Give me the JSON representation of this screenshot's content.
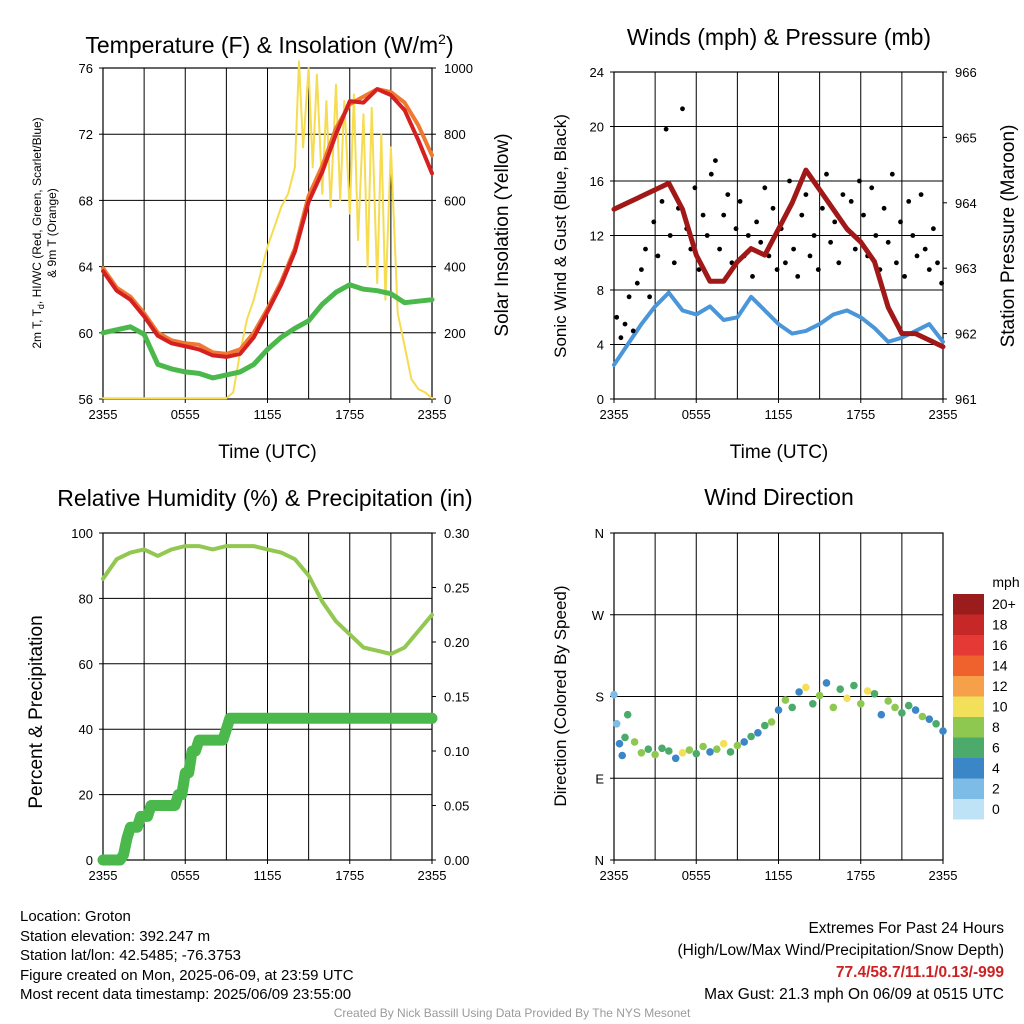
{
  "info": {
    "location": "Location: Groton",
    "elevation": "Station elevation: 392.247 m",
    "latlon": "Station lat/lon: 42.5485; -76.3753",
    "created": "Figure created on Mon, 2025-06-09, at 23:59 UTC",
    "recent": "Most recent data timestamp: 2025/06/09 23:55:00"
  },
  "extremes": {
    "title": "Extremes For Past 24 Hours",
    "subtitle": "(High/Low/Max Wind/Precipitation/Snow Depth)",
    "values": "77.4/58.7/11.1/0.13/-999",
    "max_gust": "Max Gust: 21.3 mph On 06/09 at 0515 UTC"
  },
  "credit": "Created By Nick Bassill Using Data Provided By The NYS Mesonet",
  "colors": {
    "temp": "#d42020",
    "dew": "#4ab84a",
    "heat_index": "#f07830",
    "solar": "#f5dc50",
    "wind": "#4a96d8",
    "gust": "#000000",
    "pressure": "#a01818",
    "rh": "#92c850",
    "precip": "#4ab84a"
  },
  "chart_data": [
    {
      "id": "temperature",
      "type": "line",
      "title": "Temperature (F) & Insolation (W/m",
      "title_sup": "2",
      "title_end": ")",
      "xlabel": "Time (UTC)",
      "ylabel_lines": [
        "2m T, T",
        "d",
        ", HI/WC (Red, Green, Scarlet/Blue)",
        "& 9m T (Orange)"
      ],
      "ylabel_right": "Solar Insolation (Yellow)",
      "x_ticks": [
        "2355",
        "0555",
        "1155",
        "1755",
        "2355"
      ],
      "ylim": [
        56,
        78
      ],
      "y_ticks": [
        "56",
        "60",
        "64",
        "68",
        "72",
        "76"
      ],
      "y2lim": [
        0,
        1000
      ],
      "y2_ticks": [
        "0",
        "200",
        "400",
        "600",
        "800",
        "1000"
      ],
      "x_hours": [
        0,
        1,
        2,
        3,
        4,
        5,
        6,
        7,
        8,
        9,
        10,
        11,
        12,
        13,
        14,
        15,
        16,
        17,
        18,
        19,
        20,
        21,
        22,
        23,
        24
      ],
      "series": [
        {
          "key": "dew",
          "values": [
            60.4,
            60.6,
            60.8,
            60.3,
            58.3,
            58.0,
            57.8,
            57.7,
            57.4,
            57.6,
            57.8,
            58.3,
            59.3,
            60.1,
            60.7,
            61.2,
            62.3,
            63.1,
            63.6,
            63.3,
            63.2,
            63.0,
            62.4,
            62.5,
            62.6
          ]
        },
        {
          "key": "heat_index",
          "values": [
            64.7,
            63.4,
            62.8,
            61.7,
            60.4,
            59.9,
            59.7,
            59.6,
            59.1,
            59.0,
            59.3,
            60.4,
            62.0,
            63.8,
            66.0,
            69.5,
            71.5,
            74.0,
            75.6,
            76.1,
            76.6,
            76.4,
            75.7,
            74.2,
            72.2
          ]
        },
        {
          "key": "temp",
          "values": [
            64.5,
            63.2,
            62.6,
            61.5,
            60.2,
            59.7,
            59.5,
            59.3,
            58.9,
            58.8,
            59.0,
            60.1,
            61.8,
            63.6,
            65.8,
            69.1,
            71.1,
            73.6,
            75.8,
            75.7,
            76.6,
            76.2,
            75.2,
            73.2,
            71.0
          ]
        }
      ],
      "solar": {
        "key": "solar",
        "x_hours": [
          0,
          4,
          8,
          9,
          9.5,
          10,
          10.5,
          11,
          11.5,
          12,
          12.5,
          13,
          13.5,
          14,
          14.3,
          14.6,
          15,
          15.3,
          15.6,
          16,
          16.3,
          16.6,
          17,
          17.3,
          17.6,
          18,
          18.3,
          18.6,
          19,
          19.3,
          19.6,
          20,
          20.3,
          20.6,
          21,
          21.5,
          22,
          22.5,
          23,
          23.5,
          24
        ],
        "values": [
          2,
          2,
          2,
          2,
          20,
          140,
          240,
          300,
          380,
          460,
          520,
          580,
          620,
          700,
          1020,
          760,
          1000,
          700,
          980,
          620,
          900,
          580,
          950,
          600,
          900,
          560,
          920,
          480,
          860,
          400,
          880,
          350,
          800,
          300,
          760,
          260,
          160,
          60,
          30,
          20,
          2
        ]
      }
    },
    {
      "id": "winds",
      "type": "line",
      "title": "Winds (mph) & Pressure (mb)",
      "xlabel": "Time (UTC)",
      "ylabel": "Sonic Wind & Gust (Blue, Black)",
      "ylabel_right": "Station Pressure (Maroon)",
      "x_ticks": [
        "2355",
        "0555",
        "1155",
        "1755",
        "2355"
      ],
      "ylim": [
        0,
        24
      ],
      "y_ticks": [
        "0",
        "4",
        "8",
        "12",
        "16",
        "20",
        "24"
      ],
      "y2lim": [
        961,
        966
      ],
      "y2_ticks": [
        "961",
        "962",
        "963",
        "964",
        "965",
        "966"
      ],
      "x_hours": [
        0,
        1,
        2,
        3,
        4,
        5,
        6,
        7,
        8,
        9,
        10,
        11,
        12,
        13,
        14,
        15,
        16,
        17,
        18,
        19,
        20,
        21,
        22,
        23,
        24
      ],
      "series": [
        {
          "key": "wind",
          "values": [
            2.5,
            4.0,
            5.5,
            6.8,
            7.8,
            6.5,
            6.2,
            6.8,
            5.8,
            6.0,
            7.5,
            6.5,
            5.5,
            4.8,
            5.0,
            5.5,
            6.2,
            6.5,
            6.0,
            5.2,
            4.2,
            4.5,
            5.0,
            5.5,
            4.2
          ]
        },
        {
          "key": "pressure",
          "values": [
            963.9,
            964.0,
            964.1,
            964.2,
            964.3,
            963.9,
            963.2,
            962.8,
            962.8,
            963.1,
            963.3,
            963.2,
            963.6,
            964.0,
            964.5,
            964.2,
            963.9,
            963.6,
            963.4,
            963.1,
            962.4,
            962.0,
            962.0,
            961.9,
            961.8
          ]
        }
      ],
      "gusts": {
        "key": "gust",
        "x_hours": [
          0.2,
          0.5,
          0.8,
          1.1,
          1.4,
          1.7,
          2.0,
          2.3,
          2.6,
          2.9,
          3.2,
          3.5,
          3.8,
          4.1,
          4.4,
          4.7,
          5.0,
          5.3,
          5.6,
          5.9,
          6.2,
          6.5,
          6.8,
          7.1,
          7.4,
          7.7,
          8.0,
          8.3,
          8.6,
          8.9,
          9.2,
          9.5,
          9.8,
          10.1,
          10.4,
          10.7,
          11.0,
          11.3,
          11.6,
          11.9,
          12.2,
          12.5,
          12.8,
          13.1,
          13.4,
          13.7,
          14.0,
          14.3,
          14.6,
          14.9,
          15.2,
          15.5,
          15.8,
          16.1,
          16.4,
          16.7,
          17.0,
          17.3,
          17.6,
          17.9,
          18.2,
          18.5,
          18.8,
          19.1,
          19.4,
          19.7,
          20.0,
          20.3,
          20.6,
          20.9,
          21.2,
          21.5,
          21.8,
          22.1,
          22.4,
          22.7,
          23.0,
          23.3,
          23.6,
          23.9
        ],
        "values": [
          6.0,
          4.5,
          5.5,
          7.5,
          5.0,
          8.5,
          9.5,
          11.0,
          7.5,
          13.0,
          10.5,
          14.5,
          19.8,
          12.0,
          10.0,
          14.0,
          21.3,
          12.5,
          11.0,
          15.5,
          9.5,
          13.5,
          12.0,
          16.5,
          17.5,
          11.0,
          13.5,
          15.0,
          10.0,
          12.5,
          14.5,
          10.5,
          12.0,
          9.0,
          13.0,
          11.5,
          15.5,
          10.5,
          14.0,
          9.5,
          12.5,
          10.0,
          16.0,
          11.0,
          9.0,
          13.5,
          15.0,
          10.5,
          12.0,
          9.5,
          14.0,
          16.5,
          11.5,
          13.0,
          10.0,
          15.0,
          12.5,
          14.5,
          11.0,
          16.0,
          13.5,
          10.5,
          15.5,
          12.0,
          9.5,
          14.0,
          11.5,
          16.5,
          10.0,
          13.0,
          9.0,
          14.5,
          12.0,
          10.5,
          15.0,
          11.0,
          9.5,
          12.5,
          10.0,
          8.5
        ]
      }
    },
    {
      "id": "humidity",
      "type": "line",
      "title": "Relative Humidity (%) & Precipitation (in)",
      "ylabel": "Percent & Precipitation",
      "x_ticks": [
        "2355",
        "0555",
        "1155",
        "1755",
        "2355"
      ],
      "ylim": [
        0,
        100
      ],
      "y_ticks": [
        "0",
        "20",
        "40",
        "60",
        "80",
        "100"
      ],
      "y2lim": [
        0,
        0.3
      ],
      "y2_ticks": [
        "0.00",
        "0.05",
        "0.10",
        "0.15",
        "0.20",
        "0.25",
        "0.30"
      ],
      "x_hours": [
        0,
        1,
        2,
        3,
        4,
        5,
        6,
        7,
        8,
        9,
        10,
        11,
        12,
        13,
        14,
        15,
        16,
        17,
        18,
        19,
        20,
        21,
        22,
        23,
        24
      ],
      "series": [
        {
          "key": "rh",
          "values": [
            86,
            92,
            94,
            95,
            93,
            95,
            96,
            96,
            95,
            96,
            96,
            96,
            95,
            94,
            92,
            87,
            79,
            73,
            69,
            65,
            64,
            63,
            65,
            70,
            75
          ]
        }
      ],
      "precip": {
        "key": "precip",
        "x_hours": [
          0,
          1.0,
          1.3,
          1.6,
          2.0,
          2.6,
          3.3,
          4.3,
          5.3,
          5.8,
          6.3,
          7.0,
          8.2,
          9.0,
          9.2,
          24
        ],
        "values": [
          0.0,
          0.0,
          0.005,
          0.02,
          0.03,
          0.04,
          0.05,
          0.05,
          0.06,
          0.08,
          0.1,
          0.11,
          0.11,
          0.12,
          0.13,
          0.13
        ]
      }
    },
    {
      "id": "direction",
      "type": "scatter",
      "title": "Wind Direction",
      "ylabel": "Direction (Colored By Speed)",
      "x_ticks": [
        "2355",
        "0555",
        "1155",
        "1755",
        "2355"
      ],
      "y_ticks": [
        "N",
        "E",
        "S",
        "W",
        "N"
      ],
      "ylim": [
        0,
        360
      ],
      "legend_title": "mph",
      "legend_labels": [
        "20+",
        "18",
        "16",
        "14",
        "12",
        "10",
        "8",
        "6",
        "4",
        "2",
        "0"
      ],
      "legend_colors": [
        "#9b1c1c",
        "#c62828",
        "#e53935",
        "#f0622d",
        "#f7a04a",
        "#f3e05a",
        "#8fc850",
        "#4caa6a",
        "#3a86c6",
        "#7cbce6",
        "#bfe3f6"
      ],
      "x_hours": [
        0.0,
        0.2,
        0.4,
        0.6,
        0.8,
        1.0,
        1.5,
        2.0,
        2.5,
        3.0,
        3.5,
        4.0,
        4.5,
        5.0,
        5.5,
        6.0,
        6.5,
        7.0,
        7.5,
        8.0,
        8.5,
        9.0,
        9.5,
        10.0,
        10.5,
        11.0,
        11.5,
        12.0,
        12.5,
        13.0,
        13.5,
        14.0,
        14.5,
        15.0,
        15.5,
        16.0,
        16.5,
        17.0,
        17.5,
        18.0,
        18.5,
        19.0,
        19.5,
        20.0,
        20.5,
        21.0,
        21.5,
        22.0,
        22.5,
        23.0,
        23.5,
        24.0
      ],
      "values": [
        182,
        150,
        128,
        115,
        135,
        160,
        130,
        118,
        122,
        116,
        123,
        120,
        112,
        118,
        121,
        117,
        125,
        119,
        122,
        128,
        119,
        126,
        130,
        136,
        140,
        148,
        152,
        165,
        176,
        168,
        185,
        190,
        172,
        181,
        195,
        168,
        188,
        178,
        192,
        172,
        186,
        183,
        160,
        175,
        168,
        162,
        170,
        165,
        158,
        155,
        150,
        142
      ],
      "speeds": [
        1,
        2,
        3,
        4,
        5,
        6,
        7,
        8,
        5,
        7,
        6,
        5,
        4,
        9,
        7,
        6,
        8,
        4,
        7,
        9,
        5,
        8,
        3,
        6,
        4,
        5,
        7,
        4,
        8,
        6,
        4,
        9,
        5,
        7,
        3,
        8,
        6,
        10,
        5,
        7,
        9,
        6,
        4,
        8,
        7,
        5,
        6,
        4,
        7,
        3,
        5,
        4
      ]
    }
  ]
}
